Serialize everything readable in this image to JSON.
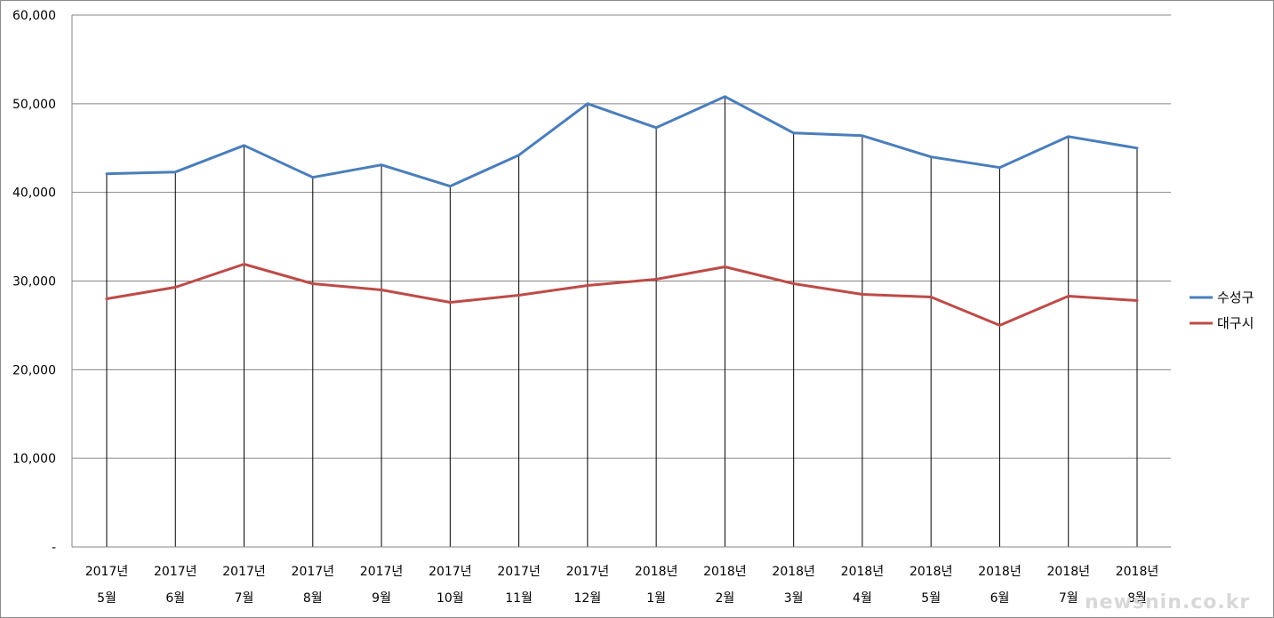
{
  "chart_data": {
    "type": "line",
    "categories": [
      [
        "2017년",
        "5월"
      ],
      [
        "2017년",
        "6월"
      ],
      [
        "2017년",
        "7월"
      ],
      [
        "2017년",
        "8월"
      ],
      [
        "2017년",
        "9월"
      ],
      [
        "2017년",
        "10월"
      ],
      [
        "2017년",
        "11월"
      ],
      [
        "2017년",
        "12월"
      ],
      [
        "2018년",
        "1월"
      ],
      [
        "2018년",
        "2월"
      ],
      [
        "2018년",
        "3월"
      ],
      [
        "2018년",
        "4월"
      ],
      [
        "2018년",
        "5월"
      ],
      [
        "2018년",
        "6월"
      ],
      [
        "2018년",
        "7월"
      ],
      [
        "2018년",
        "8월"
      ]
    ],
    "series": [
      {
        "name": "수성구",
        "color": "#4a7ebb",
        "values": [
          42100,
          42300,
          45300,
          41700,
          43100,
          40700,
          44200,
          50000,
          47300,
          50800,
          46700,
          46400,
          44000,
          42800,
          46300,
          45000
        ]
      },
      {
        "name": "대구시",
        "color": "#be4b48",
        "values": [
          28000,
          29300,
          31900,
          29700,
          29000,
          27600,
          28400,
          29500,
          30200,
          31600,
          29700,
          28500,
          28200,
          25000,
          28300,
          27800
        ]
      }
    ],
    "ylim": [
      0,
      60000
    ],
    "yticks": [
      {
        "value": 0,
        "label": "-"
      },
      {
        "value": 10000,
        "label": "10,000"
      },
      {
        "value": 20000,
        "label": "20,000"
      },
      {
        "value": 30000,
        "label": "30,000"
      },
      {
        "value": 40000,
        "label": "40,000"
      },
      {
        "value": 50000,
        "label": "50,000"
      },
      {
        "value": 60000,
        "label": "60,000"
      }
    ],
    "drop_lines": true,
    "grid": "horizontal",
    "legend_position": "right",
    "watermark": "newsnin.co.kr"
  }
}
